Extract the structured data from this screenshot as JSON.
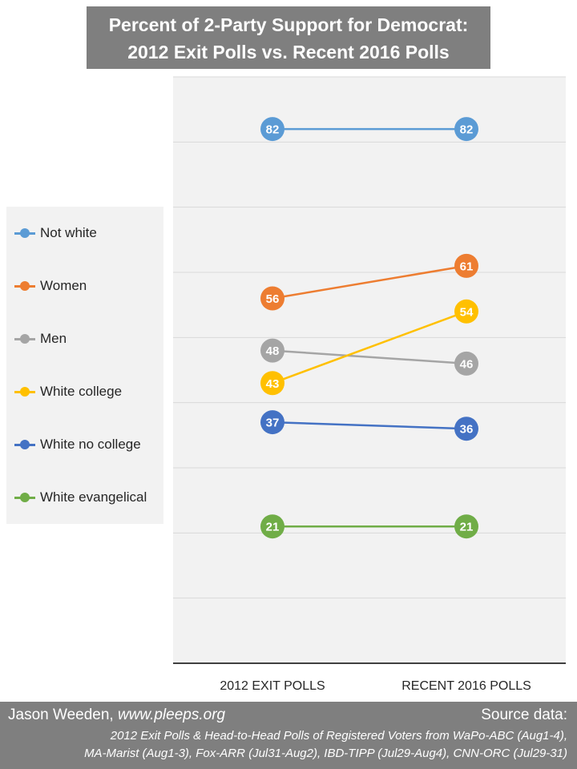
{
  "title": {
    "line1": "Percent of 2-Party Support for Democrat:",
    "line2": "2012 Exit Polls vs. Recent 2016 Polls"
  },
  "chart_data": {
    "type": "line",
    "categories": [
      "2012 EXIT POLLS",
      "RECENT 2016 POLLS"
    ],
    "ylim": [
      0,
      90
    ],
    "grid": true,
    "legend_position": "left",
    "series": [
      {
        "name": "Not white",
        "values": [
          82,
          82
        ],
        "color": "#5b9bd5"
      },
      {
        "name": "Women",
        "values": [
          56,
          61
        ],
        "color": "#ed7d31"
      },
      {
        "name": "Men",
        "values": [
          48,
          46
        ],
        "color": "#a5a5a5"
      },
      {
        "name": "White college",
        "values": [
          43,
          54
        ],
        "color": "#ffc000"
      },
      {
        "name": "White no college",
        "values": [
          37,
          36
        ],
        "color": "#4472c4"
      },
      {
        "name": "White evangelical",
        "values": [
          21,
          21
        ],
        "color": "#70ad47"
      }
    ]
  },
  "footer": {
    "author_name": "Jason Weeden,",
    "author_url": "www.pleeps.org",
    "source_label": "Source data:",
    "source_line1": "2012 Exit Polls & Head-to-Head Polls of Registered  Voters from WaPo-ABC (Aug1-4),",
    "source_line2": "MA-Marist (Aug1-3), Fox-ARR (Jul31-Aug2), IBD-TIPP (Jul29-Aug4), CNN-ORC (Jul29-31)"
  }
}
